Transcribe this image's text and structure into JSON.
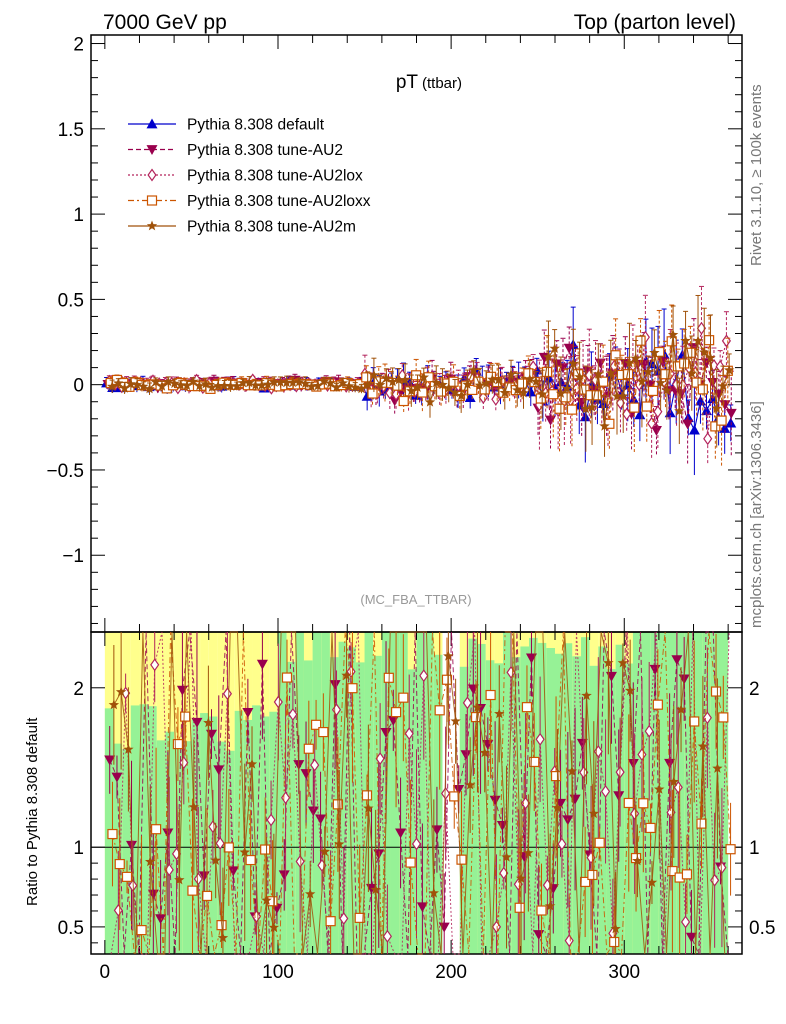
{
  "header": {
    "left": "7000 GeV pp",
    "right": "Top (parton level)"
  },
  "chart_data": {
    "type": "line",
    "title_main": "pT",
    "title_sub": "(ttbar)",
    "watermark": "(MC_FBA_TTBAR)",
    "side_label_top": "Rivet 3.1.10, ≥ 100k events",
    "side_label_bottom": "mcplots.cern.ch [arXiv:1306.3436]",
    "ratio_ylabel": "Ratio to Pythia 8.308 default",
    "xlim": [
      -8,
      368
    ],
    "main_ylim": [
      -1.45,
      2.05
    ],
    "ratio_ylim": [
      0.33,
      2.35
    ],
    "x_ticks": [
      "0",
      "100",
      "200",
      "300"
    ],
    "main_y_ticks": [
      "−1",
      "−0.5",
      "0",
      "0.5",
      "1",
      "1.5",
      "2"
    ],
    "ratio_y_ticks": [
      "0.5",
      "1",
      "2"
    ],
    "series": [
      {
        "name": "Pythia 8.308 default",
        "color": "#0000cc",
        "marker": "triangle-up",
        "style": "solid",
        "description": "fluctuates around 0; |y| < 0.05 for x < 150, spread up to ±0.4 for x > 250"
      },
      {
        "name": "Pythia 8.308 tune-AU2",
        "color": "#99004d",
        "marker": "triangle-down",
        "style": "dashed",
        "description": "fluctuates around 0; spread up to ±0.3 for x > 250"
      },
      {
        "name": "Pythia 8.308 tune-AU2lox",
        "color": "#b3245c",
        "marker": "diamond-open",
        "style": "dotted",
        "description": "fluctuates around 0; spread up to ±0.35 for x > 250"
      },
      {
        "name": "Pythia 8.308 tune-AU2loxx",
        "color": "#cc5500",
        "marker": "square-open",
        "style": "dashdot",
        "description": "fluctuates around 0; spread up to +0.6 / −0.45 for x > 250"
      },
      {
        "name": "Pythia 8.308 tune-AU2m",
        "color": "#a0520a",
        "marker": "star",
        "style": "solid",
        "description": "fluctuates around 0; spread up to +0.5 / −0.4 for x > 250"
      }
    ]
  }
}
